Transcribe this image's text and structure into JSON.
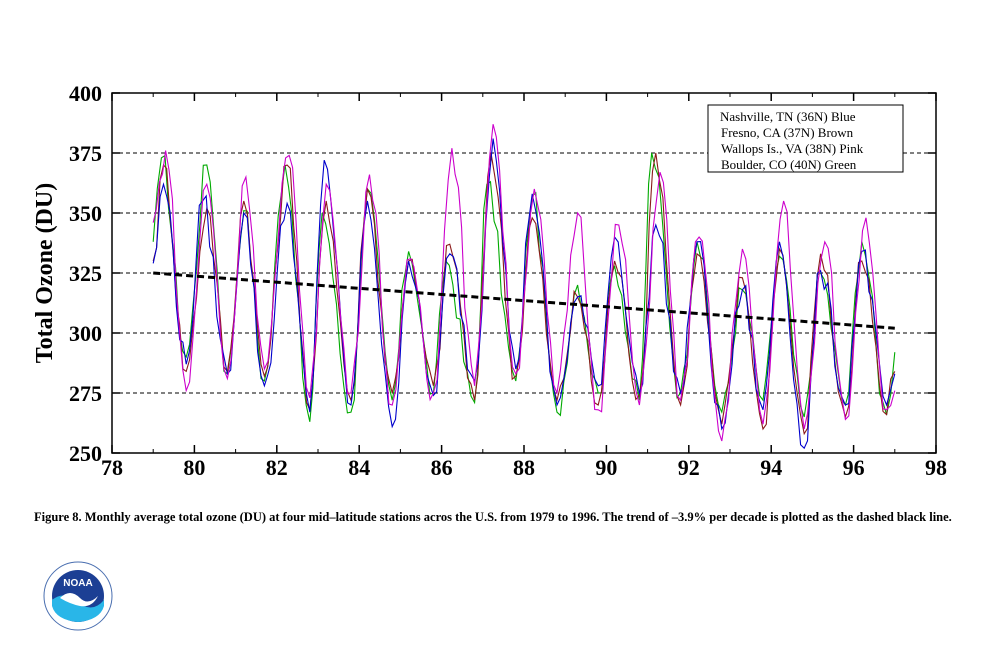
{
  "caption": "Figure 8. Monthly average total ozone (DU) at four mid–latitude stations acros the U.S. from 1979 to 1996. The trend of –3.9% per decade is plotted as the dashed black line.",
  "logo": {
    "text": "NOAA",
    "ring_text": "NATIONAL OCEANIC AND ATMOSPHERIC ADMINISTRATION · U.S. DEPARTMENT OF COMMERCE"
  },
  "chart_data": {
    "type": "line",
    "title": "",
    "xlabel": "",
    "ylabel": "Total Ozone (DU)",
    "xlim": [
      78,
      98
    ],
    "ylim": [
      250,
      400
    ],
    "x_ticks": [
      "78",
      "80",
      "82",
      "84",
      "86",
      "88",
      "90",
      "92",
      "94",
      "96",
      "98"
    ],
    "y_ticks": [
      "250",
      "275",
      "300",
      "325",
      "350",
      "375",
      "400"
    ],
    "grid": "horizontal dashed at 275, 300, 325, 350, 375",
    "legend_position": "top-right",
    "legend": [
      "Nashville, TN (36N) Blue",
      "Fresno, CA (37N) Brown",
      "Wallops Is., VA (38N) Pink",
      "Boulder, CO (40N) Green"
    ],
    "series_colors": {
      "nashville": "#0000cc",
      "fresno": "#8b1a1a",
      "wallops": "#cc00cc",
      "boulder": "#00aa00",
      "trend": "#000000"
    },
    "trend": {
      "x": [
        79.0,
        97.0
      ],
      "y": [
        325,
        302
      ]
    },
    "series": [
      {
        "key": "boulder",
        "peaks": [
          [
            79.2,
            373
          ],
          [
            80.3,
            370
          ],
          [
            81.2,
            351
          ],
          [
            82.2,
            370
          ],
          [
            83.1,
            350
          ],
          [
            84.2,
            360
          ],
          [
            85.2,
            334
          ],
          [
            86.1,
            330
          ],
          [
            87.1,
            362
          ],
          [
            88.2,
            357
          ],
          [
            89.3,
            320
          ],
          [
            90.2,
            328
          ],
          [
            91.1,
            375
          ],
          [
            92.2,
            338
          ],
          [
            93.3,
            318
          ],
          [
            94.2,
            332
          ],
          [
            95.2,
            325
          ],
          [
            96.2,
            338
          ]
        ],
        "troughs": [
          [
            79.0,
            338
          ],
          [
            79.8,
            290
          ],
          [
            80.8,
            283
          ],
          [
            81.7,
            280
          ],
          [
            82.8,
            263
          ],
          [
            83.8,
            267
          ],
          [
            84.8,
            272
          ],
          [
            85.8,
            275
          ],
          [
            86.8,
            271
          ],
          [
            87.8,
            280
          ],
          [
            88.8,
            267
          ],
          [
            89.8,
            275
          ],
          [
            90.8,
            272
          ],
          [
            91.8,
            275
          ],
          [
            92.8,
            267
          ],
          [
            93.8,
            272
          ],
          [
            94.8,
            265
          ],
          [
            95.8,
            270
          ],
          [
            96.8,
            266
          ],
          [
            97.0,
            292
          ]
        ]
      },
      {
        "key": "fresno",
        "peaks": [
          [
            79.25,
            370
          ],
          [
            80.3,
            352
          ],
          [
            81.2,
            355
          ],
          [
            82.25,
            370
          ],
          [
            83.2,
            355
          ],
          [
            84.2,
            360
          ],
          [
            85.2,
            330
          ],
          [
            86.2,
            337
          ],
          [
            87.2,
            375
          ],
          [
            88.2,
            348
          ],
          [
            89.3,
            315
          ],
          [
            90.2,
            330
          ],
          [
            91.2,
            375
          ],
          [
            92.2,
            333
          ],
          [
            93.3,
            323
          ],
          [
            94.2,
            335
          ],
          [
            95.2,
            333
          ],
          [
            96.2,
            330
          ]
        ],
        "troughs": [
          [
            79.0,
            330
          ],
          [
            79.8,
            284
          ],
          [
            80.8,
            284
          ],
          [
            81.7,
            282
          ],
          [
            82.8,
            268
          ],
          [
            83.8,
            272
          ],
          [
            84.8,
            275
          ],
          [
            85.8,
            278
          ],
          [
            86.8,
            272
          ],
          [
            87.8,
            282
          ],
          [
            88.8,
            272
          ],
          [
            89.8,
            270
          ],
          [
            90.8,
            274
          ],
          [
            91.8,
            270
          ],
          [
            92.8,
            262
          ],
          [
            93.8,
            260
          ],
          [
            94.8,
            258
          ],
          [
            95.8,
            265
          ],
          [
            96.8,
            266
          ],
          [
            97.0,
            284
          ]
        ]
      },
      {
        "key": "nashville",
        "peaks": [
          [
            79.25,
            362
          ],
          [
            80.2,
            355
          ],
          [
            81.2,
            350
          ],
          [
            82.25,
            354
          ],
          [
            83.15,
            372
          ],
          [
            84.2,
            355
          ],
          [
            85.2,
            330
          ],
          [
            86.2,
            333
          ],
          [
            87.25,
            381
          ],
          [
            88.2,
            358
          ],
          [
            89.3,
            315
          ],
          [
            90.2,
            340
          ],
          [
            91.2,
            345
          ],
          [
            92.2,
            338
          ],
          [
            93.3,
            318
          ],
          [
            94.2,
            338
          ],
          [
            95.2,
            326
          ],
          [
            96.2,
            334
          ]
        ],
        "troughs": [
          [
            79.0,
            329
          ],
          [
            79.8,
            287
          ],
          [
            80.8,
            283
          ],
          [
            81.7,
            278
          ],
          [
            82.8,
            267
          ],
          [
            83.8,
            270
          ],
          [
            84.8,
            261
          ],
          [
            85.8,
            274
          ],
          [
            86.8,
            280
          ],
          [
            87.8,
            285
          ],
          [
            88.8,
            270
          ],
          [
            89.8,
            278
          ],
          [
            90.8,
            275
          ],
          [
            91.8,
            275
          ],
          [
            92.8,
            260
          ],
          [
            93.8,
            268
          ],
          [
            94.8,
            252
          ],
          [
            95.8,
            270
          ],
          [
            96.8,
            270
          ],
          [
            97.0,
            283
          ]
        ]
      },
      {
        "key": "wallops",
        "peaks": [
          [
            79.3,
            376
          ],
          [
            80.3,
            362
          ],
          [
            81.25,
            365
          ],
          [
            82.3,
            374
          ],
          [
            83.2,
            362
          ],
          [
            84.25,
            366
          ],
          [
            85.25,
            331
          ],
          [
            86.25,
            377
          ],
          [
            87.25,
            387
          ],
          [
            88.25,
            360
          ],
          [
            89.3,
            350
          ],
          [
            90.3,
            345
          ],
          [
            91.3,
            367
          ],
          [
            92.25,
            340
          ],
          [
            93.3,
            335
          ],
          [
            94.3,
            355
          ],
          [
            95.3,
            338
          ],
          [
            96.3,
            348
          ]
        ],
        "troughs": [
          [
            79.0,
            346
          ],
          [
            79.8,
            276
          ],
          [
            80.8,
            281
          ],
          [
            81.7,
            285
          ],
          [
            82.8,
            273
          ],
          [
            83.8,
            275
          ],
          [
            84.8,
            270
          ],
          [
            85.8,
            275
          ],
          [
            86.8,
            278
          ],
          [
            87.8,
            283
          ],
          [
            88.8,
            275
          ],
          [
            89.8,
            268
          ],
          [
            90.8,
            270
          ],
          [
            91.8,
            272
          ],
          [
            92.8,
            255
          ],
          [
            93.8,
            262
          ],
          [
            94.8,
            260
          ],
          [
            95.8,
            264
          ],
          [
            96.8,
            268
          ],
          [
            97.0,
            276
          ]
        ]
      }
    ]
  }
}
